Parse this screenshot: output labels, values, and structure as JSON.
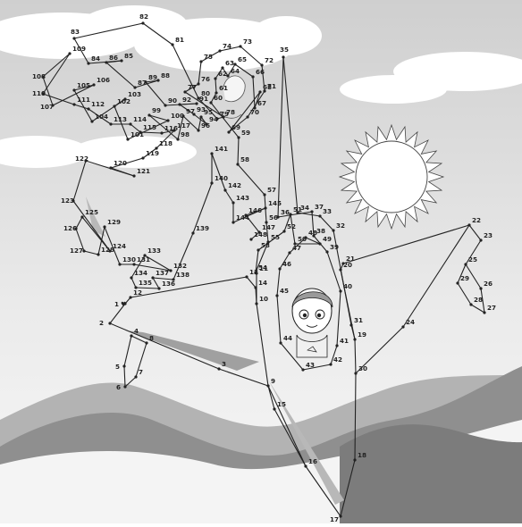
{
  "title": "",
  "colors": {
    "sky_top": "#c8c8c8",
    "sky_bottom": "#f2f2f2",
    "hills": "#a9a9a9",
    "hills_near": "#8a8a8a",
    "line": "#222222",
    "sun": "#ffffff"
  },
  "heart_symbol": "♥",
  "numbers": [
    "1",
    "2",
    "3",
    "4",
    "5",
    "6",
    "7",
    "8",
    "9",
    "10",
    "11",
    "12",
    "13",
    "14",
    "15",
    "16",
    "17",
    "18",
    "19",
    "20",
    "21",
    "22",
    "23",
    "24",
    "25",
    "26",
    "27",
    "28",
    "29",
    "30",
    "31",
    "32",
    "33",
    "34",
    "35",
    "36",
    "37",
    "38",
    "39",
    "40",
    "41",
    "42",
    "43",
    "44",
    "45",
    "46",
    "47",
    "48",
    "49",
    "50",
    "51",
    "52",
    "53",
    "54",
    "55",
    "56",
    "57",
    "58",
    "59",
    "60",
    "61",
    "62",
    "63",
    "64",
    "65",
    "66",
    "67",
    "68",
    "69",
    "70",
    "71",
    "72",
    "73",
    "74",
    "75",
    "76",
    "77",
    "78",
    "79",
    "80",
    "81",
    "82",
    "83",
    "84",
    "85",
    "86",
    "87",
    "88",
    "89",
    "90",
    "91",
    "92",
    "93",
    "94",
    "95",
    "96",
    "97",
    "98",
    "99",
    "100",
    "101",
    "102",
    "103",
    "104",
    "105",
    "106",
    "107",
    "108",
    "109",
    "110",
    "111",
    "112",
    "113",
    "114",
    "115",
    "116",
    "117",
    "118",
    "119",
    "120",
    "121",
    "122",
    "123",
    "124",
    "125",
    "126",
    "127",
    "128",
    "129",
    "130",
    "131",
    "132",
    "133",
    "134",
    "135",
    "136",
    "137",
    "138",
    "139",
    "140",
    "141",
    "142",
    "143",
    "144",
    "145",
    "146",
    "147",
    "148"
  ],
  "drawing_elements": [
    "sun-icon",
    "cloud-icon",
    "hills",
    "paper-plane",
    "child-pilot",
    "girl-face",
    "lion-kite"
  ]
}
